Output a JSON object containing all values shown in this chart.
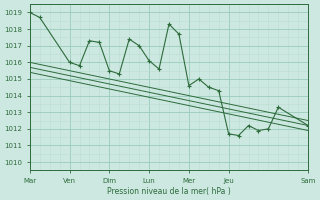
{
  "bg_color": "#cce8e0",
  "grid_color_major": "#99ccbb",
  "grid_color_minor": "#bbddd5",
  "line_color": "#2d6b3c",
  "title": "Pression niveau de la mer( hPa )",
  "ylim": [
    1009.5,
    1019.5
  ],
  "yticks": [
    1010,
    1011,
    1012,
    1013,
    1014,
    1015,
    1016,
    1017,
    1018,
    1019
  ],
  "xlim": [
    0,
    28
  ],
  "day_tick_positions": [
    0,
    4,
    8,
    12,
    16,
    20,
    28
  ],
  "day_tick_labels": [
    "Mar",
    "Ven",
    "Dim",
    "Lun",
    "Mer",
    "Jeu",
    "Sam"
  ],
  "series1_x": [
    0,
    1,
    4,
    5,
    6,
    7,
    8,
    9,
    10,
    11,
    12,
    13,
    14,
    15,
    16,
    17,
    18,
    19,
    20,
    21,
    22,
    23,
    24,
    25,
    28
  ],
  "series1_y": [
    1019.0,
    1018.7,
    1016.0,
    1015.8,
    1017.3,
    1017.2,
    1015.5,
    1015.3,
    1017.4,
    1017.0,
    1016.1,
    1015.6,
    1018.3,
    1017.7,
    1014.6,
    1015.0,
    1014.5,
    1014.3,
    1011.7,
    1011.6,
    1012.2,
    1011.9,
    1012.0,
    1013.3,
    1012.2
  ],
  "trend1_x": [
    0,
    28
  ],
  "trend1_y": [
    1016.0,
    1012.5
  ],
  "trend2_x": [
    0,
    28
  ],
  "trend2_y": [
    1015.7,
    1012.2
  ],
  "trend3_x": [
    0,
    28
  ],
  "trend3_y": [
    1015.4,
    1011.9
  ]
}
